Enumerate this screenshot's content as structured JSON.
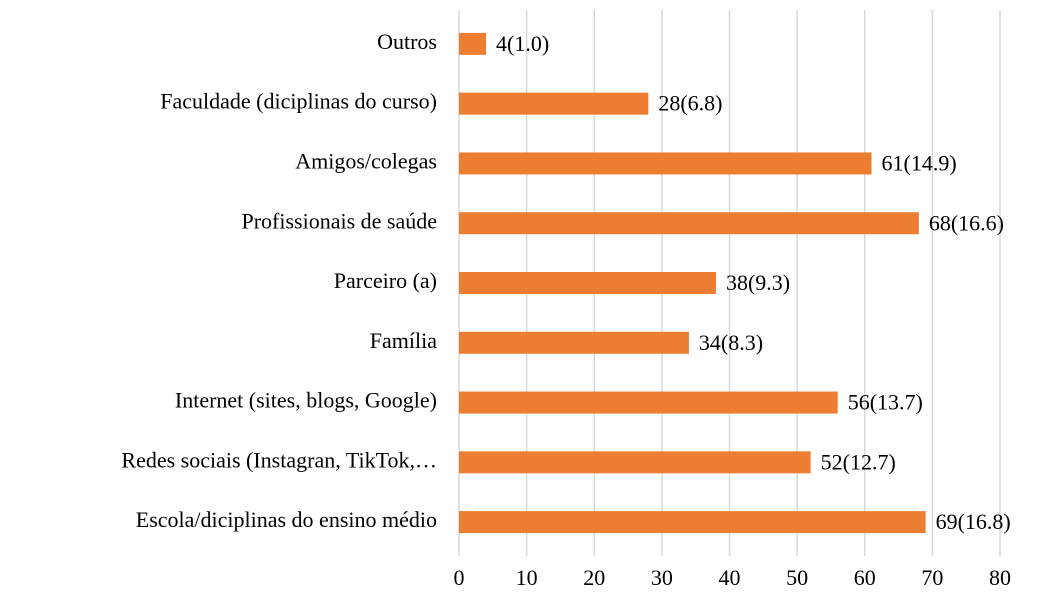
{
  "chart_data": {
    "type": "barh",
    "categories": [
      "Outros",
      "Faculdade (diciplinas do curso)",
      "Amigos/colegas",
      "Profissionais de saúde",
      "Parceiro (a)",
      "Família",
      "Internet (sites, blogs, Google)",
      "Redes sociais (Instagran, TikTok,…",
      "Escola/diciplinas do ensino médio"
    ],
    "values": [
      4,
      28,
      61,
      68,
      38,
      34,
      56,
      52,
      69
    ],
    "value_labels": [
      "4(1.0)",
      "28(6.8)",
      "61(14.9)",
      "68(16.6)",
      "38(9.3)",
      "34(8.3)",
      "56(13.7)",
      "52(12.7)",
      "69(16.8)"
    ],
    "color": "#ed7d31",
    "xlim": [
      0,
      80
    ],
    "xticks": [
      0,
      10,
      20,
      30,
      40,
      50,
      60,
      70,
      80
    ],
    "grid": true
  }
}
